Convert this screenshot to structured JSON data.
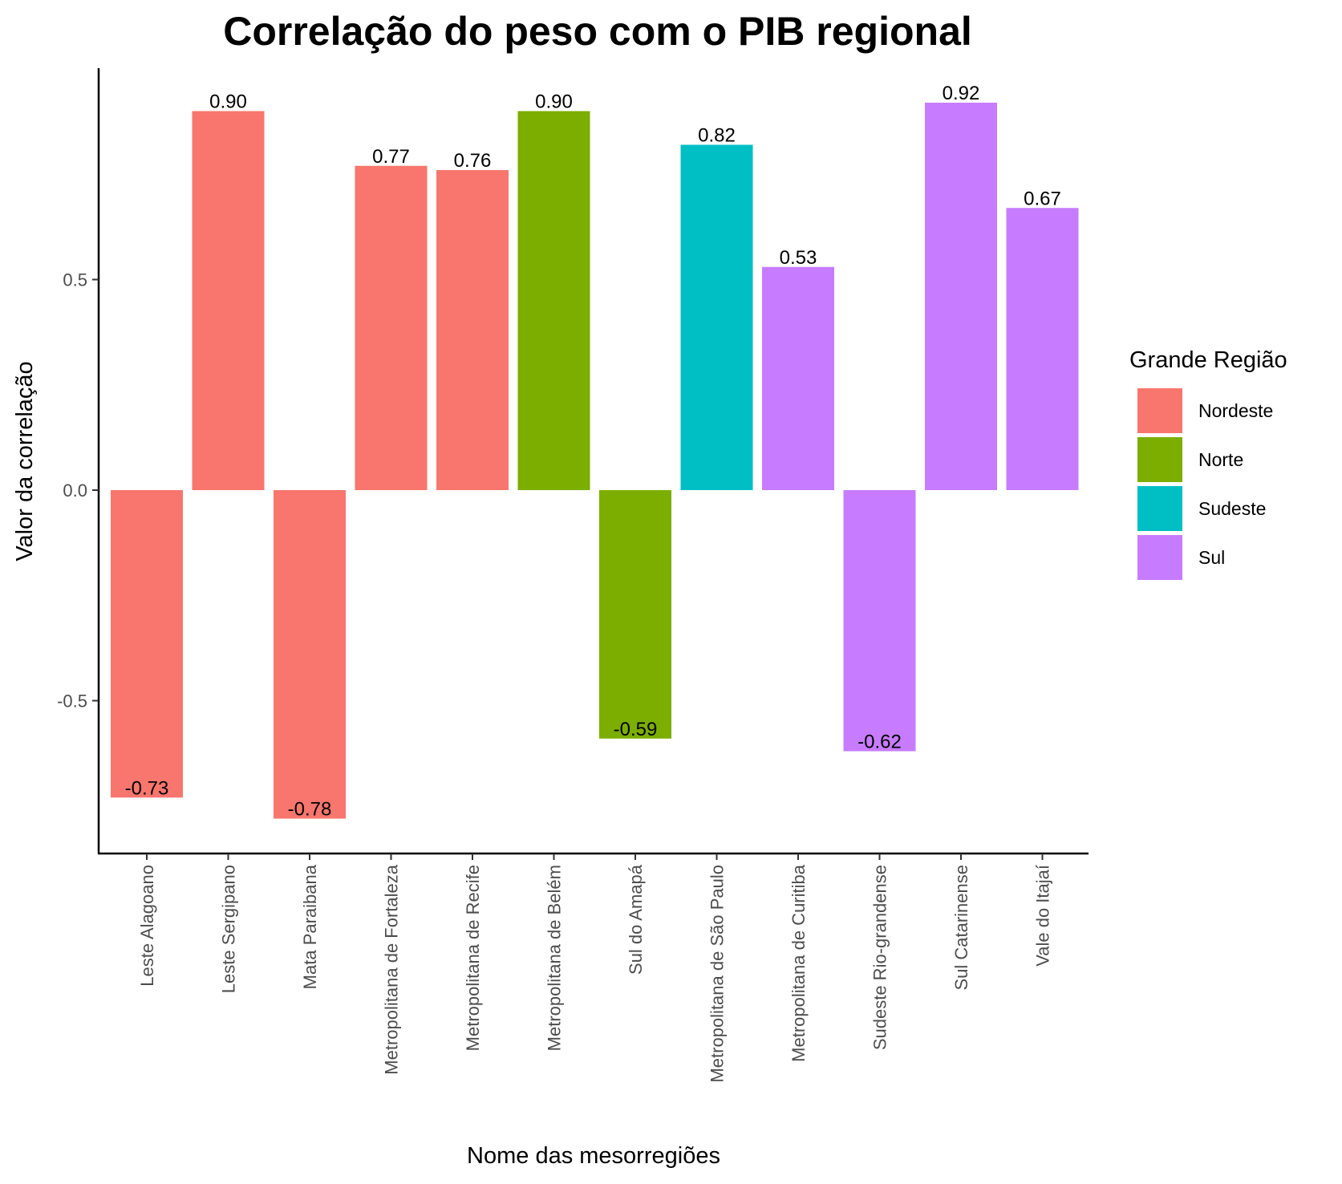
{
  "chart_data": {
    "type": "bar",
    "title": "Correlação do peso com o PIB regional",
    "xlabel": "Nome das mesorregiões",
    "ylabel": "Valor da correlação",
    "ylim": [
      -0.87,
      1.0
    ],
    "y_ticks": [
      -0.5,
      0.0,
      0.5
    ],
    "y_tick_labels": [
      "-0.5",
      "0.0",
      "0.5"
    ],
    "grid": false,
    "legend": {
      "title": "Grande Região",
      "position": "right",
      "entries": [
        {
          "name": "Nordeste",
          "color": "#F8766D"
        },
        {
          "name": "Norte",
          "color": "#7CAE00"
        },
        {
          "name": "Sudeste",
          "color": "#00BFC4"
        },
        {
          "name": "Sul",
          "color": "#C77CFF"
        }
      ]
    },
    "categories": [
      "Leste Alagoano",
      "Leste Sergipano",
      "Mata Paraibana",
      "Metropolitana de Fortaleza",
      "Metropolitana de Recife",
      "Metropolitana de Belém",
      "Sul do Amapá",
      "Metropolitana de São Paulo",
      "Metropolitana de Curitiba",
      "Sudeste Rio-grandense",
      "Sul Catarinense",
      "Vale do Itajaí"
    ],
    "values": [
      -0.73,
      0.9,
      -0.78,
      0.77,
      0.76,
      0.9,
      -0.59,
      0.82,
      0.53,
      -0.62,
      0.92,
      0.67
    ],
    "data_labels": [
      "-0.73",
      "0.90",
      "-0.78",
      "0.77",
      "0.76",
      "0.90",
      "-0.59",
      "0.82",
      "0.53",
      "-0.62",
      "0.92",
      "0.67"
    ],
    "groups": [
      "Nordeste",
      "Nordeste",
      "Nordeste",
      "Nordeste",
      "Nordeste",
      "Norte",
      "Norte",
      "Sudeste",
      "Sul",
      "Sul",
      "Sul",
      "Sul"
    ]
  }
}
